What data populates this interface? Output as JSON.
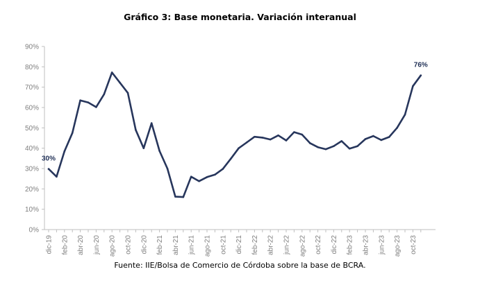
{
  "title": "Gráfico 3: Base monetaria. Variación interanual",
  "source": "Fuente: IIE/Bolsa de Comercio de Córdoba sobre la base de BCRA.",
  "colors": {
    "line": "#27365c",
    "axis": "#bfbfbf",
    "tick_text": "#7f7f7f",
    "label_text": "#1f2f55"
  },
  "chart_data": {
    "type": "line",
    "title": "Gráfico 3: Base monetaria. Variación interanual",
    "xlabel": "",
    "ylabel": "",
    "ylim": [
      0,
      90
    ],
    "y_ticks": [
      0,
      10,
      20,
      30,
      40,
      50,
      60,
      70,
      80,
      90
    ],
    "y_tick_labels": [
      "0%",
      "10%",
      "20%",
      "30%",
      "40%",
      "50%",
      "60%",
      "70%",
      "80%",
      "90%"
    ],
    "grid": false,
    "x_tick_labels": [
      "dic-19",
      "feb-20",
      "abr-20",
      "jun-20",
      "ago-20",
      "oct-20",
      "dic-20",
      "feb-21",
      "abr-21",
      "jun-21",
      "ago-21",
      "oct-21",
      "dic-21",
      "feb-22",
      "abr-22",
      "jun-22",
      "ago-22",
      "oct-22",
      "dic-22",
      "feb-23",
      "abr-23",
      "jun-23",
      "ago-23",
      "oct-23"
    ],
    "x": [
      "dic-19",
      "ene-20",
      "feb-20",
      "mar-20",
      "abr-20",
      "may-20",
      "jun-20",
      "jul-20",
      "ago-20",
      "sep-20",
      "oct-20",
      "nov-20",
      "dic-20",
      "ene-21",
      "feb-21",
      "mar-21",
      "abr-21",
      "may-21",
      "jun-21",
      "jul-21",
      "ago-21",
      "sep-21",
      "oct-21",
      "nov-21",
      "dic-21",
      "ene-22",
      "feb-22",
      "mar-22",
      "abr-22",
      "may-22",
      "jun-22",
      "jul-22",
      "ago-22",
      "sep-22",
      "oct-22",
      "nov-22",
      "dic-22",
      "ene-23",
      "feb-23",
      "mar-23",
      "abr-23",
      "may-23",
      "jun-23",
      "jul-23",
      "ago-23",
      "sep-23",
      "oct-23",
      "nov-23"
    ],
    "series": [
      {
        "values": [
          29.8,
          26,
          38.5,
          47.5,
          63.5,
          62.5,
          60.2,
          66.5,
          77.2,
          72.2,
          67.2,
          49,
          40,
          52.3,
          38.7,
          30,
          16.2,
          16,
          26,
          23.8,
          25.8,
          27,
          29.8,
          34.8,
          40,
          42.8,
          45.6,
          45.2,
          44.3,
          46.3,
          43.8,
          47.9,
          46.7,
          42.5,
          40.5,
          39.5,
          41,
          43.5,
          39.8,
          41,
          44.5,
          46,
          44,
          45.5,
          50,
          56.5,
          70.5,
          75.8
        ]
      }
    ],
    "annotations": [
      {
        "x": "dic-19",
        "text": "30%"
      },
      {
        "x": "nov-23",
        "text": "76%"
      }
    ]
  }
}
